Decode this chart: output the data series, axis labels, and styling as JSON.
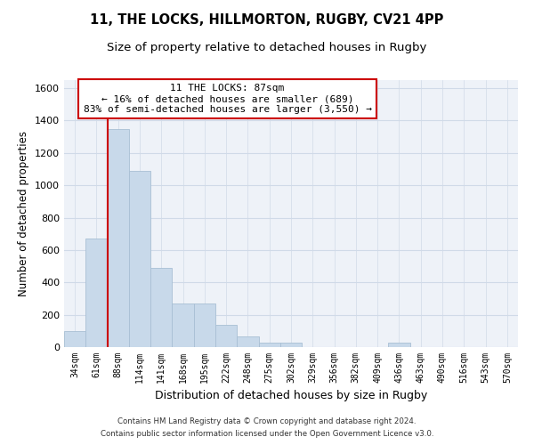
{
  "title1": "11, THE LOCKS, HILLMORTON, RUGBY, CV21 4PP",
  "title2": "Size of property relative to detached houses in Rugby",
  "xlabel": "Distribution of detached houses by size in Rugby",
  "ylabel": "Number of detached properties",
  "bar_color": "#c8d9ea",
  "bar_edge_color": "#a8bfd4",
  "grid_color": "#d0dae8",
  "background_color": "#eef2f8",
  "bin_labels": [
    "34sqm",
    "61sqm",
    "88sqm",
    "114sqm",
    "141sqm",
    "168sqm",
    "195sqm",
    "222sqm",
    "248sqm",
    "275sqm",
    "302sqm",
    "329sqm",
    "356sqm",
    "382sqm",
    "409sqm",
    "436sqm",
    "463sqm",
    "490sqm",
    "516sqm",
    "543sqm",
    "570sqm"
  ],
  "bar_values": [
    100,
    670,
    1350,
    1090,
    490,
    270,
    270,
    140,
    65,
    30,
    30,
    0,
    0,
    0,
    0,
    25,
    0,
    0,
    0,
    0,
    0
  ],
  "property_label": "11 THE LOCKS: 87sqm",
  "annotation_line1": "← 16% of detached houses are smaller (689)",
  "annotation_line2": "83% of semi-detached houses are larger (3,550) →",
  "vline_color": "#cc0000",
  "annotation_border_color": "#cc0000",
  "ylim": [
    0,
    1650
  ],
  "yticks": [
    0,
    200,
    400,
    600,
    800,
    1000,
    1200,
    1400,
    1600
  ],
  "footer1": "Contains HM Land Registry data © Crown copyright and database right 2024.",
  "footer2": "Contains public sector information licensed under the Open Government Licence v3.0."
}
